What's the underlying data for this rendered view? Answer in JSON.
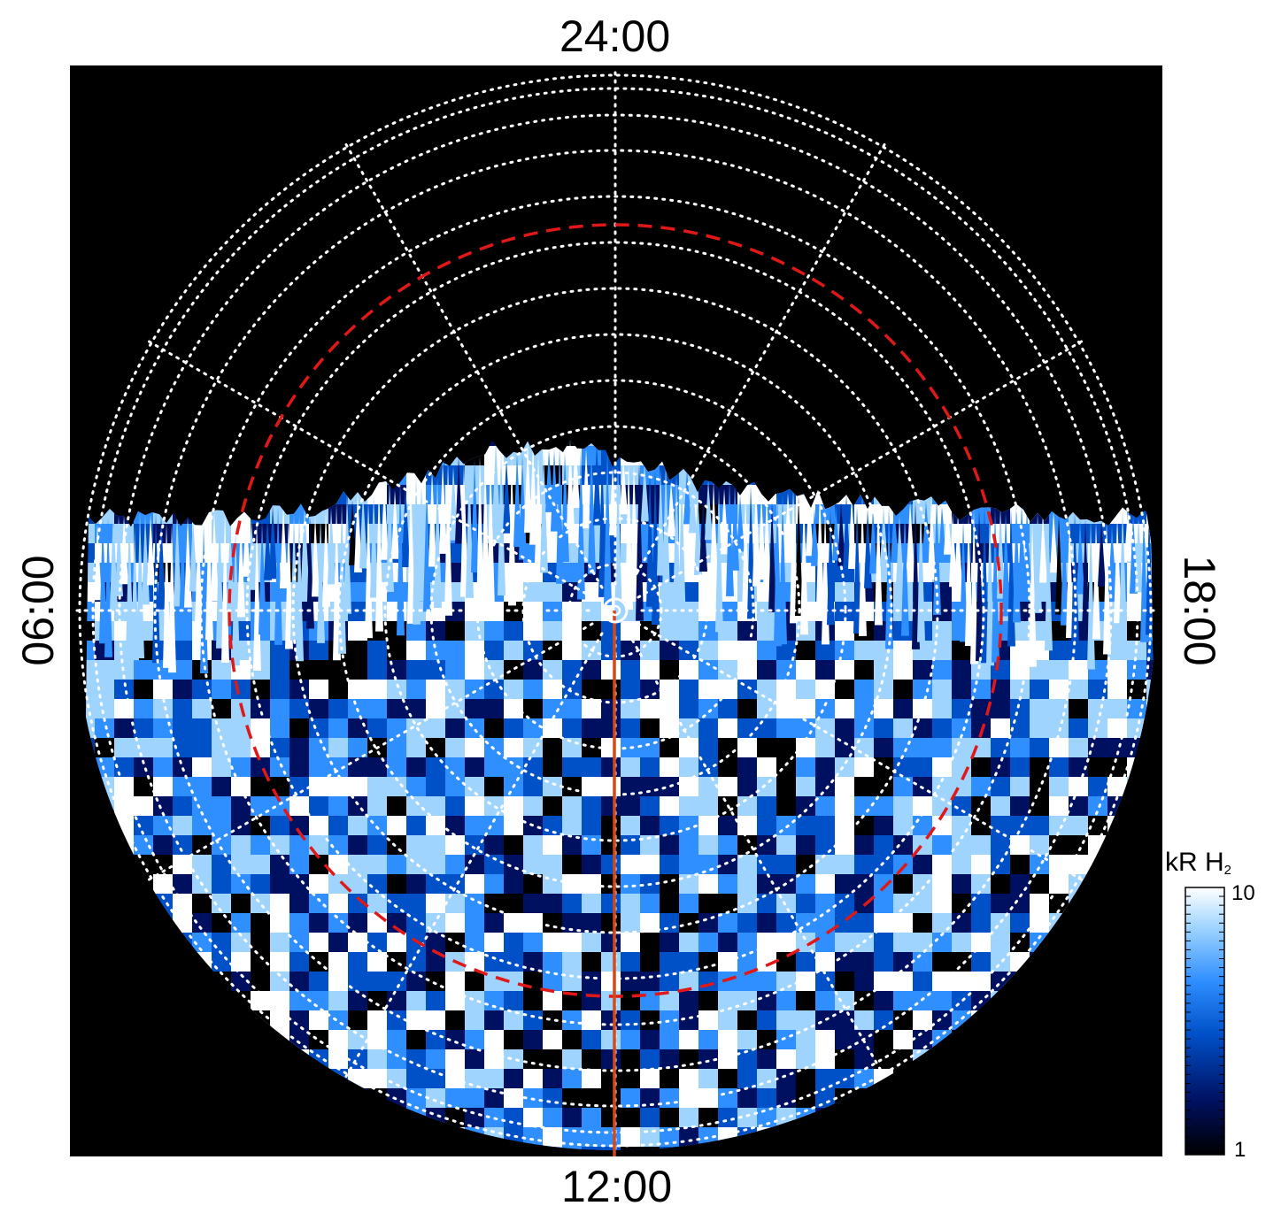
{
  "figure": {
    "type": "polar-auroral-projection",
    "local_time_labels": {
      "top": "24:00",
      "bottom": "12:00",
      "left": "06:00",
      "right": "18:00"
    },
    "colorbar": {
      "unit_label": "kR H",
      "unit_subscript": "2",
      "max_label": "10",
      "min_label": "1",
      "scale": "log",
      "colors": [
        "#000000",
        "#001060",
        "#0050c8",
        "#2f8fff",
        "#9fd4ff",
        "#ffffff"
      ]
    },
    "colors": {
      "background": "#000000",
      "grid": "#ffffff",
      "dashed_circle": "#e01818",
      "meridian_line": "#d24a1a",
      "emission_dim": "#003a9e",
      "emission_bright": "#ffffff"
    },
    "grid": {
      "style": "dotted",
      "meridian_step_hours": 2
    }
  }
}
